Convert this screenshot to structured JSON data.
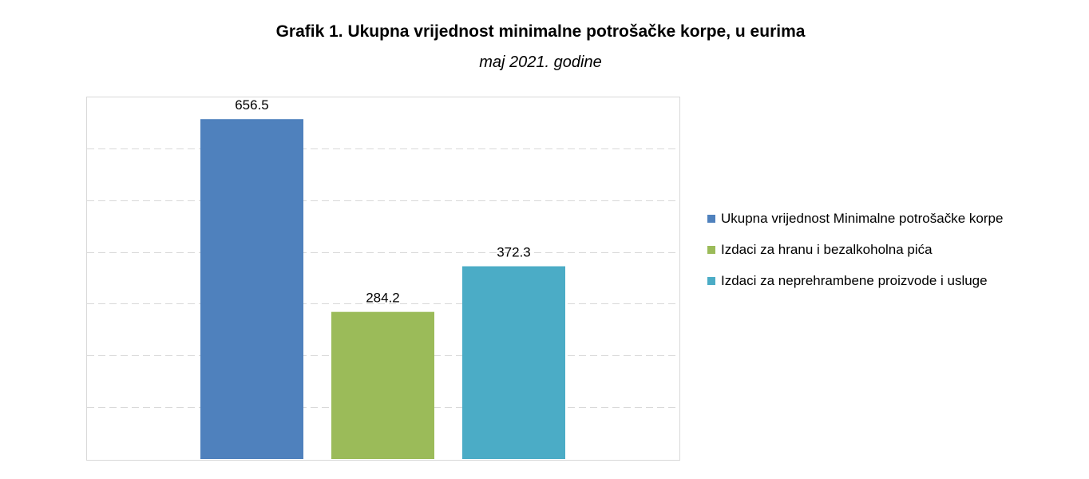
{
  "title": "Grafik 1. Ukupna vrijednost minimalne potrošačke korpe, u eurima",
  "subtitle": "maj 2021. godine",
  "legend": [
    {
      "label": "Ukupna vrijednost Minimalne potrošačke korpe",
      "color": "#4f81bd"
    },
    {
      "label": "Izdaci za hranu i bezalkoholna pića",
      "color": "#9bbb59"
    },
    {
      "label": "Izdaci za neprehrambene proizvode i usluge",
      "color": "#4bacc6"
    }
  ],
  "chart_data": {
    "type": "bar",
    "title": "Grafik 1. Ukupna vrijednost minimalne potrošačke korpe, u eurima",
    "subtitle": "maj 2021. godine",
    "xlabel": "",
    "ylabel": "",
    "ylim": [
      0,
      700
    ],
    "grid": true,
    "legend_position": "right",
    "series": [
      {
        "name": "Ukupna vrijednost Minimalne potrošačke korpe",
        "value": 656.5,
        "label": "656.5",
        "color": "#4f81bd"
      },
      {
        "name": "Izdaci za hranu i bezalkoholna pića",
        "value": 284.2,
        "label": "284.2",
        "color": "#9bbb59"
      },
      {
        "name": "Izdaci za neprehrambene proizvode i usluge",
        "value": 372.3,
        "label": "372.3",
        "color": "#4bacc6"
      }
    ]
  }
}
